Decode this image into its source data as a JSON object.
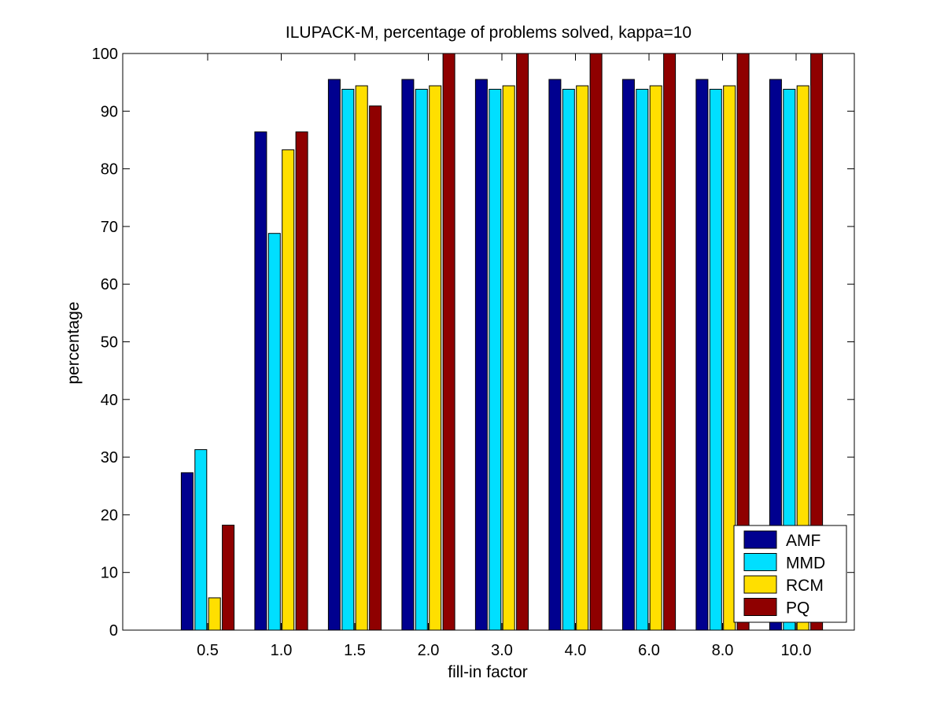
{
  "chart_data": {
    "type": "bar",
    "title": "ILUPACK-M, percentage of problems solved, kappa=10",
    "xlabel": "fill-in factor",
    "ylabel": "percentage",
    "categories": [
      "0.5",
      "1.0",
      "1.5",
      "2.0",
      "3.0",
      "4.0",
      "6.0",
      "8.0",
      "10.0"
    ],
    "ylim": [
      0,
      100
    ],
    "yticks": [
      0,
      10,
      20,
      30,
      40,
      50,
      60,
      70,
      80,
      90,
      100
    ],
    "grid": false,
    "legend_position": "bottom-right",
    "series": [
      {
        "name": "AMF",
        "color": "#00008f",
        "values": [
          27.3,
          86.4,
          95.5,
          95.5,
          95.5,
          95.5,
          95.5,
          95.5,
          95.5
        ]
      },
      {
        "name": "MMD",
        "color": "#00dfff",
        "values": [
          31.3,
          68.8,
          93.8,
          93.8,
          93.8,
          93.8,
          93.8,
          93.8,
          93.8
        ]
      },
      {
        "name": "RCM",
        "color": "#ffdf00",
        "values": [
          5.6,
          83.3,
          94.4,
          94.4,
          94.4,
          94.4,
          94.4,
          94.4,
          94.4
        ]
      },
      {
        "name": "PQ",
        "color": "#8f0000",
        "values": [
          18.2,
          86.4,
          90.9,
          100,
          100,
          100,
          100,
          100,
          100
        ]
      }
    ]
  }
}
